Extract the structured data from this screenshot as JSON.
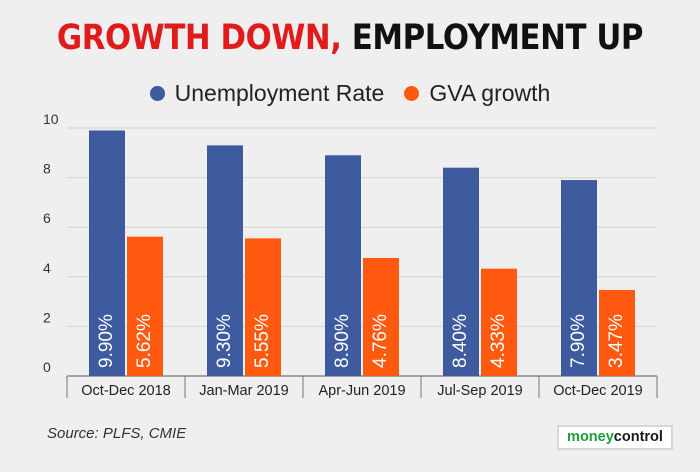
{
  "title": {
    "part1": "GROWTH DOWN,",
    "part2": "EMPLOYMENT UP"
  },
  "legend": [
    {
      "label": "Unemployment Rate",
      "color": "#3d5b9e"
    },
    {
      "label": "GVA growth",
      "color": "#ff5a10"
    }
  ],
  "source": "Source: PLFS, CMIE",
  "logo": {
    "part1": "money",
    "part2": "control"
  },
  "chart_data": {
    "type": "bar",
    "categories": [
      "Oct-Dec 2018",
      "Jan-Mar 2019",
      "Apr-Jun 2019",
      "Jul-Sep 2019",
      "Oct-Dec 2019"
    ],
    "series": [
      {
        "name": "Unemployment Rate",
        "color": "#3d5b9e",
        "values": [
          9.9,
          9.3,
          8.9,
          8.4,
          7.9
        ],
        "labels": [
          "9.90%",
          "9.30%",
          "8.90%",
          "8.40%",
          "7.90%"
        ]
      },
      {
        "name": "GVA growth",
        "color": "#ff5a10",
        "values": [
          5.62,
          5.55,
          4.76,
          4.33,
          3.47
        ],
        "labels": [
          "5.62%",
          "5.55%",
          "4.76%",
          "4.33%",
          "3.47%"
        ]
      }
    ],
    "yticks": [
      0,
      2,
      4,
      6,
      8,
      10
    ],
    "ylim": [
      0,
      10
    ],
    "grid": true,
    "legend_position": "top"
  }
}
